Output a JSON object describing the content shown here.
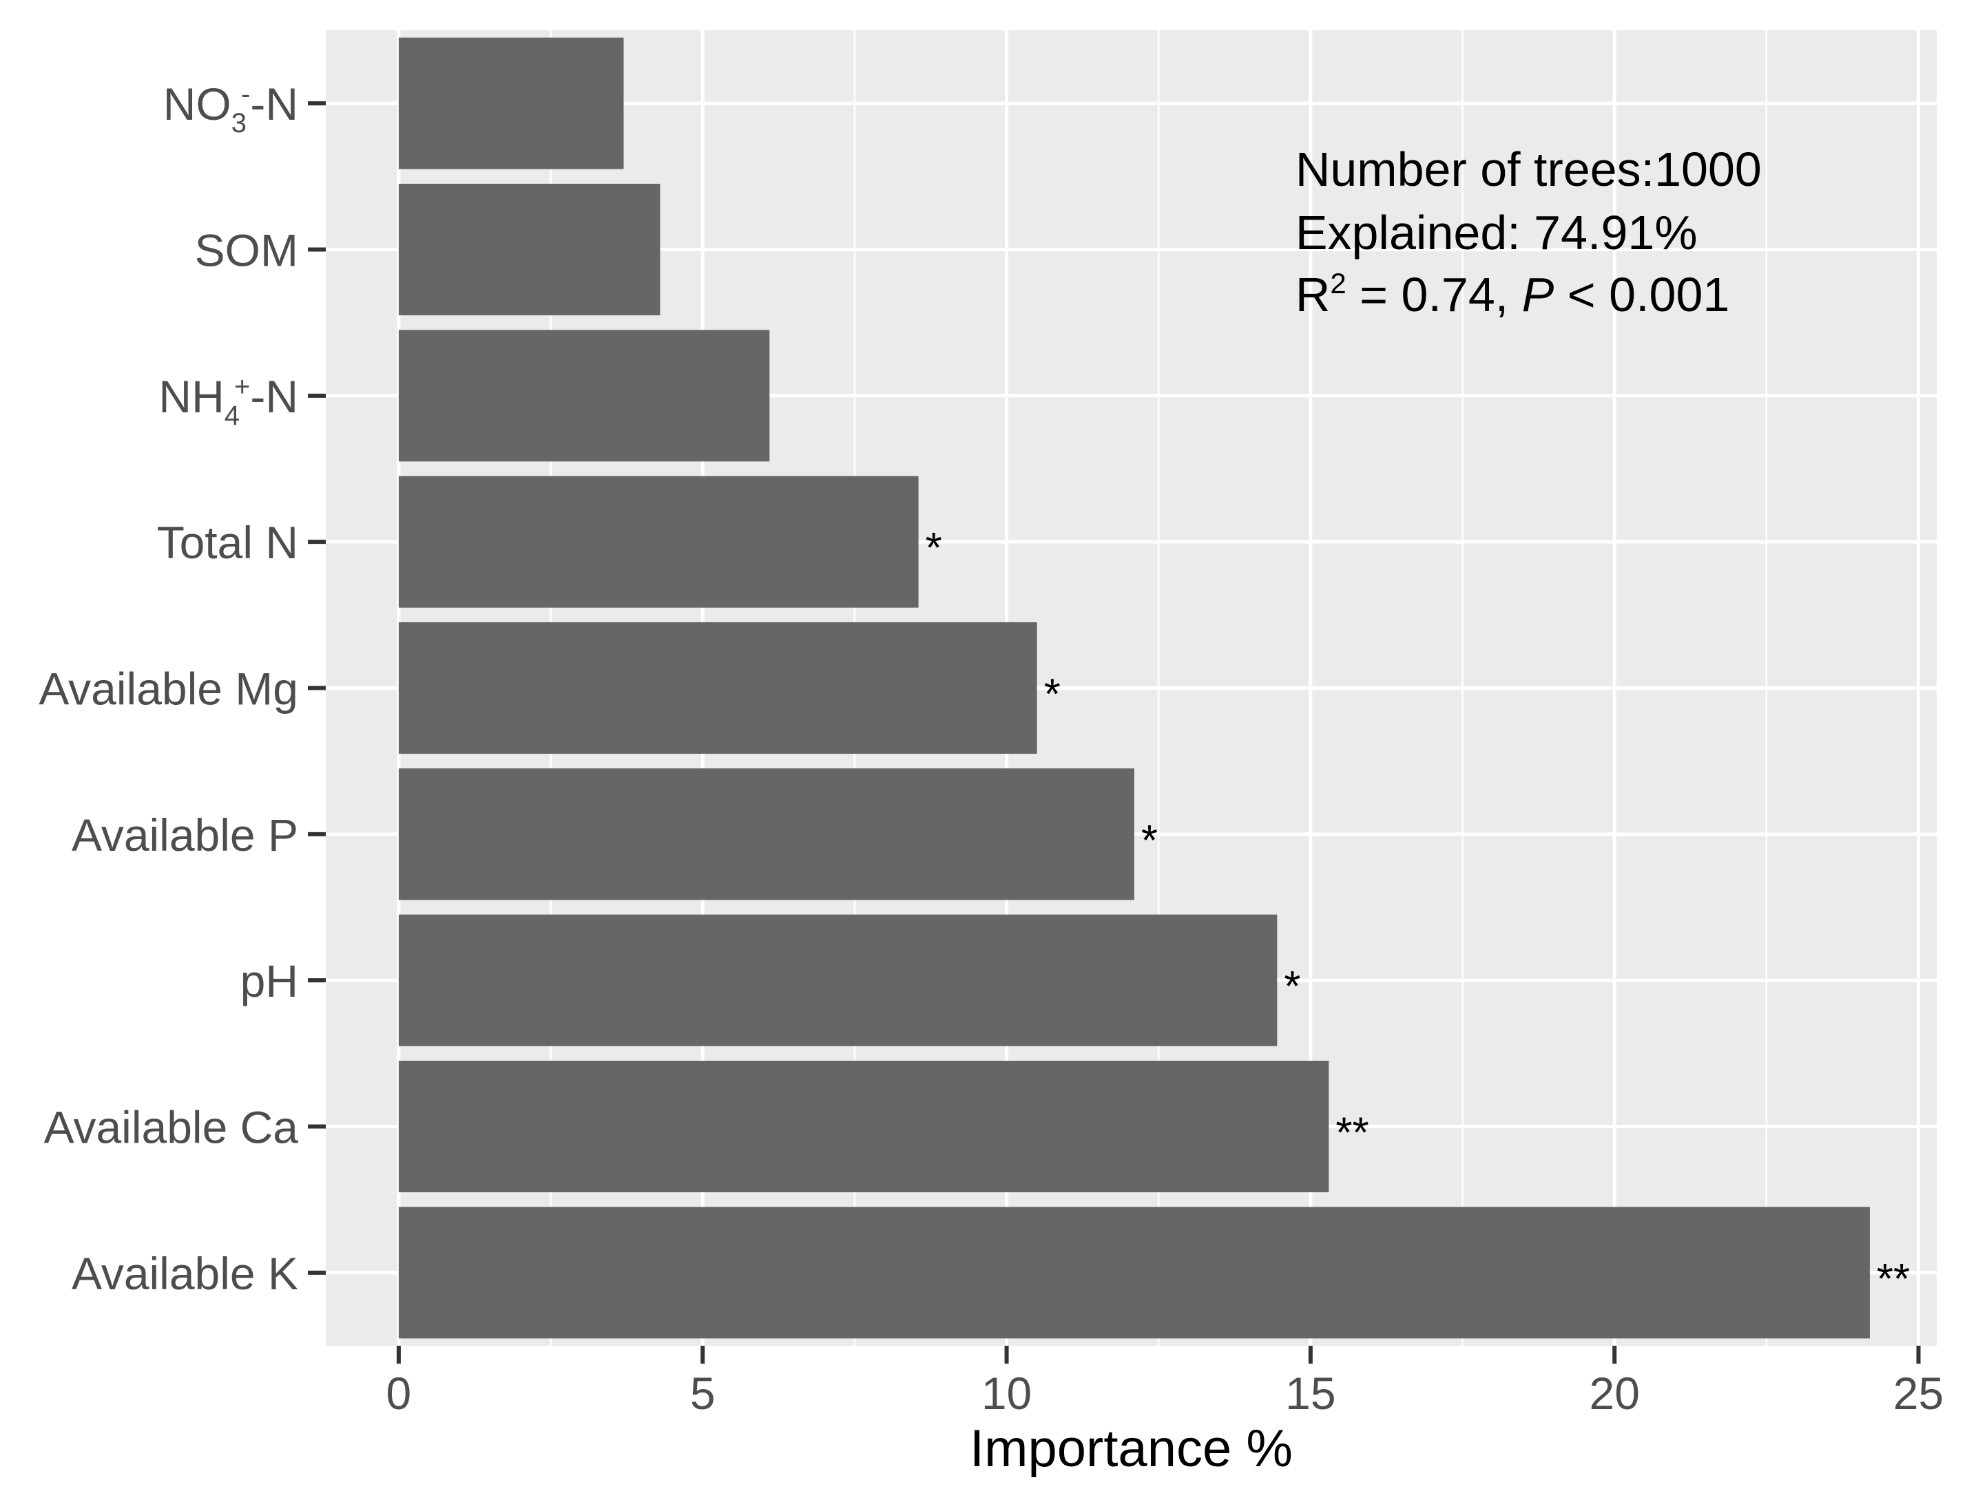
{
  "chart_data": {
    "type": "bar",
    "orientation": "horizontal",
    "categories": [
      "NO₃⁻-N",
      "SOM",
      "NH₄⁺-N",
      "Total N",
      "Available Mg",
      "Available P",
      "pH",
      "Available Ca",
      "Available K"
    ],
    "tick_labels": [
      {
        "base": "NO",
        "sub": "3",
        "sup": "-",
        "tail": "-N"
      },
      {
        "base": "SOM",
        "sub": "",
        "sup": "",
        "tail": ""
      },
      {
        "base": "NH",
        "sub": "4",
        "sup": "+",
        "tail": "-N"
      },
      {
        "base": "Total N",
        "sub": "",
        "sup": "",
        "tail": ""
      },
      {
        "base": "Available Mg",
        "sub": "",
        "sup": "",
        "tail": ""
      },
      {
        "base": "Available P",
        "sub": "",
        "sup": "",
        "tail": ""
      },
      {
        "base": "pH",
        "sub": "",
        "sup": "",
        "tail": ""
      },
      {
        "base": "Available Ca",
        "sub": "",
        "sup": "",
        "tail": ""
      },
      {
        "base": "Available K",
        "sub": "",
        "sup": "",
        "tail": ""
      }
    ],
    "values": [
      3.7,
      4.3,
      6.1,
      8.55,
      10.5,
      12.1,
      14.45,
      15.3,
      24.2
    ],
    "significance": [
      "",
      "",
      "",
      "*",
      "*",
      "*",
      "*",
      "**",
      "**"
    ],
    "xlabel": "Importance %",
    "ylabel": "",
    "xlim": [
      -1.2,
      25.3
    ],
    "x_ticks": [
      0,
      5,
      10,
      15,
      20,
      25
    ],
    "grid": true,
    "bar_color": "#666666",
    "panel_color": "#EBEBEB",
    "grid_color": "#FFFFFF",
    "annotation": {
      "line1": "Number of trees:1000",
      "line2": "Explained: 74.91%",
      "line3_r": "R",
      "line3_sup": "2",
      "line3_mid": " = 0.74, ",
      "line3_p": "P",
      "line3_end": " < 0.001"
    }
  }
}
